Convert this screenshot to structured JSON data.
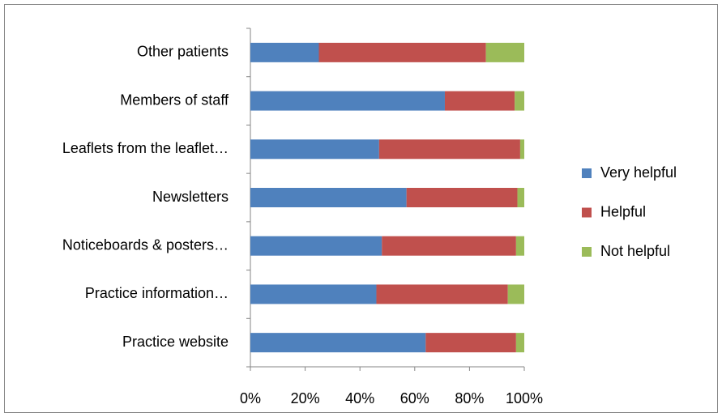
{
  "chart_data": {
    "type": "stacked_bar_horizontal",
    "categories": [
      "Other patients",
      "Members of staff",
      "Leaflets from the leaflet…",
      "Newsletters",
      "Noticeboards & posters…",
      "Practice information…",
      "Practice website"
    ],
    "series": [
      {
        "name": "Very helpful",
        "color": "#4f81bd",
        "values": [
          25,
          71,
          47,
          57,
          48,
          46,
          64
        ]
      },
      {
        "name": "Helpful",
        "color": "#c0504d",
        "values": [
          61,
          25.5,
          51.5,
          40.5,
          49,
          48,
          33
        ]
      },
      {
        "name": "Not helpful",
        "color": "#9bbb59",
        "values": [
          14,
          3.5,
          1.5,
          2.5,
          3,
          6,
          3
        ]
      }
    ],
    "xlim": [
      0,
      100
    ],
    "xticks": [
      {
        "value": 0,
        "label": "0%"
      },
      {
        "value": 20,
        "label": "20%"
      },
      {
        "value": 40,
        "label": "40%"
      },
      {
        "value": 60,
        "label": "60%"
      },
      {
        "value": 80,
        "label": "80%"
      },
      {
        "value": 100,
        "label": "100%"
      }
    ],
    "legend": "right"
  }
}
